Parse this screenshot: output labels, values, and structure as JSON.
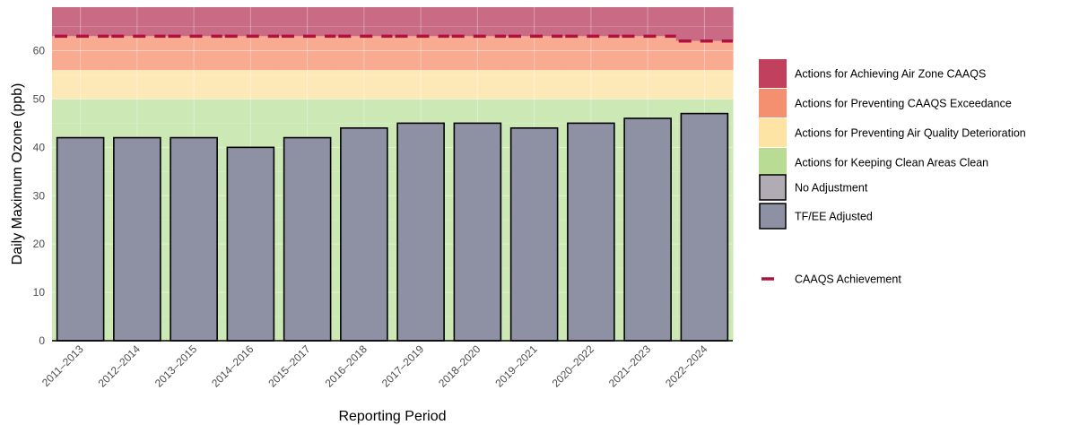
{
  "chart_data": {
    "type": "bar",
    "title": "",
    "xlabel": "Reporting Period",
    "ylabel": "Daily Maximum Ozone (ppb)",
    "ylim": [
      0,
      69
    ],
    "yticks": [
      0,
      10,
      20,
      30,
      40,
      50,
      60
    ],
    "categories": [
      "2011–2013",
      "2012–2014",
      "2013–2015",
      "2014–2016",
      "2015–2017",
      "2016–2018",
      "2017–2019",
      "2018–2020",
      "2019–2021",
      "2020–2022",
      "2021–2023",
      "2022–2024"
    ],
    "series": [
      {
        "name": "TF/EE Adjusted",
        "values": [
          42,
          42,
          42,
          40,
          42,
          44,
          45,
          45,
          44,
          45,
          46,
          47
        ],
        "color": "#8d91a3"
      }
    ],
    "caaqs_achievement": {
      "name": "CAAQS Achievement",
      "values": [
        63,
        63,
        63,
        63,
        63,
        63,
        63,
        63,
        63,
        63,
        63,
        62
      ],
      "color": "#b0123f"
    },
    "management_bands": [
      {
        "label": "Actions for Keeping Clean Areas Clean",
        "from": 0,
        "to": 50,
        "color": "#cce8b5"
      },
      {
        "label": "Actions for Preventing Air Quality Deterioration",
        "from": 50,
        "to": 56,
        "color": "#fde8b8"
      },
      {
        "label": "Actions for Preventing CAAQS Exceedance",
        "from": 56,
        "to": [
          63,
          63,
          63,
          63,
          63,
          63,
          63,
          63,
          63,
          63,
          63,
          62
        ],
        "color": "#f8ab91"
      },
      {
        "label": "Actions for Achieving Air Zone CAAQS",
        "from": [
          63,
          63,
          63,
          63,
          63,
          63,
          63,
          63,
          63,
          63,
          63,
          62
        ],
        "to": 69,
        "color": "#c96b84"
      }
    ],
    "legend": {
      "placement": "right",
      "items": [
        {
          "label": "Actions for Achieving Air Zone CAAQS",
          "kind": "fill",
          "color": "#c0405e"
        },
        {
          "label": "Actions for Preventing CAAQS Exceedance",
          "kind": "fill",
          "color": "#f49070"
        },
        {
          "label": "Actions for Preventing Air Quality Deterioration",
          "kind": "fill",
          "color": "#fde4a4"
        },
        {
          "label": "Actions for Keeping Clean Areas Clean",
          "kind": "fill",
          "color": "#b8dc94"
        },
        {
          "label": "No Adjustment",
          "kind": "box",
          "color": "#b1acb4"
        },
        {
          "label": "TF/EE Adjusted",
          "kind": "box",
          "color": "#8d91a3"
        },
        {
          "label": "CAAQS Achievement",
          "kind": "dash",
          "color": "#b0123f"
        }
      ]
    },
    "grid": true
  }
}
